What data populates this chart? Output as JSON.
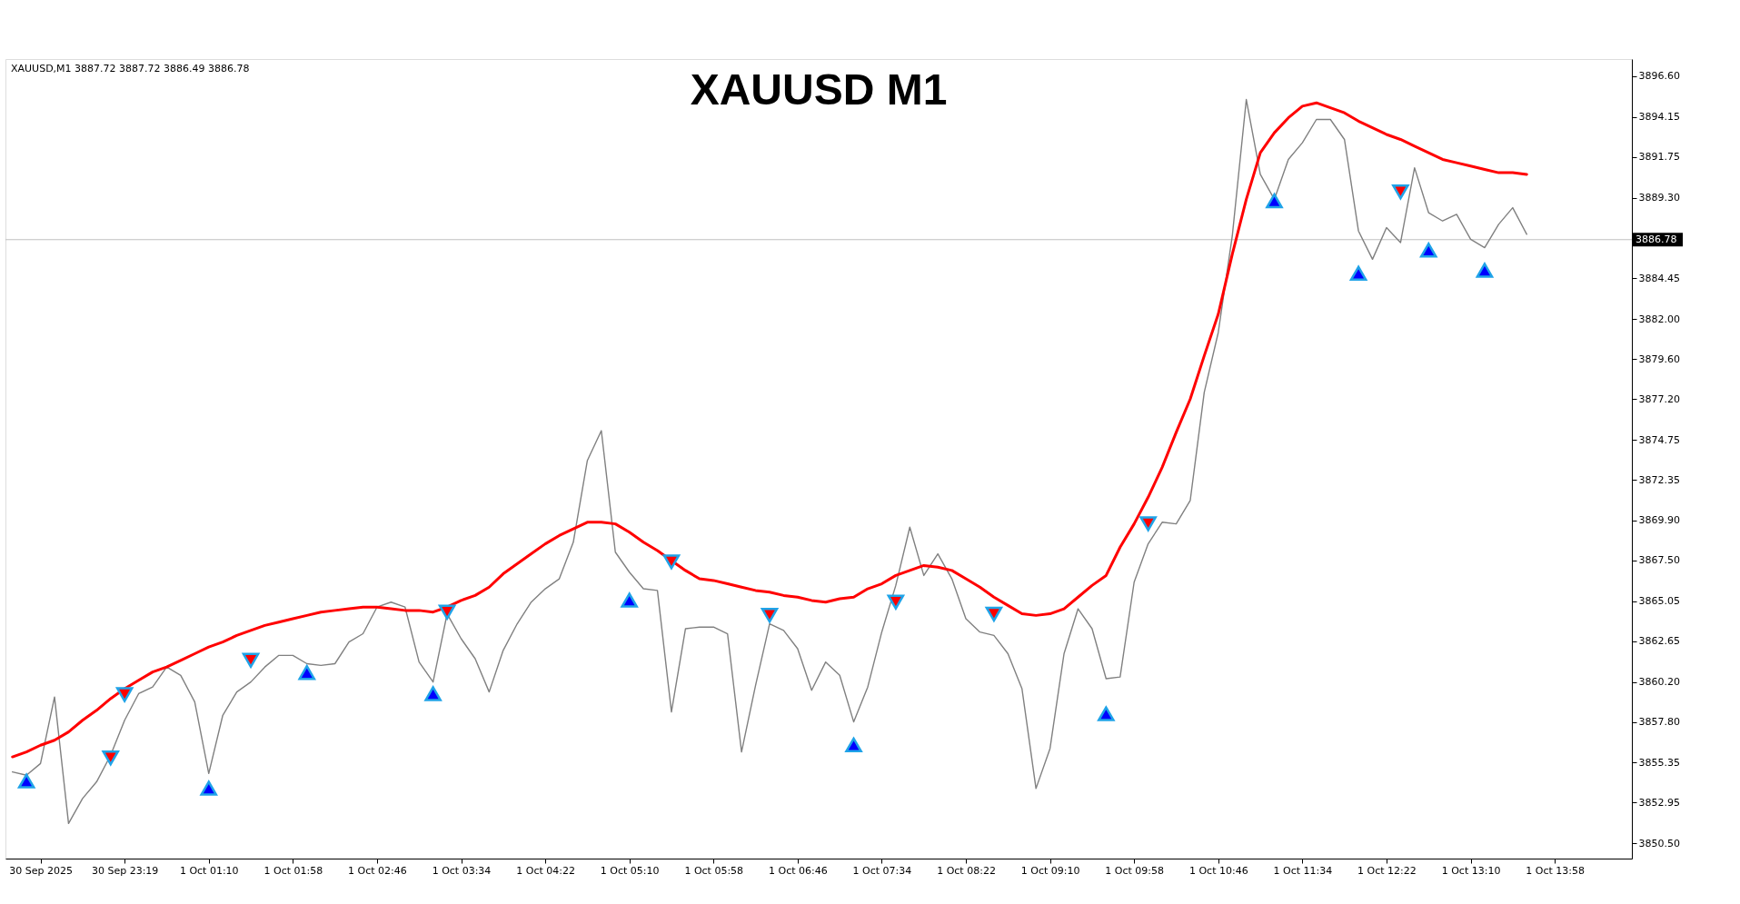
{
  "chart_data": {
    "type": "line",
    "title": "XAUUSD M1",
    "annotations": [
      "XAUUSD,M1  3887.72 3887.72 3886.49 3886.78"
    ],
    "categories": [
      null,
      null,
      "30 Sep 2025",
      null,
      null,
      null,
      null,
      null,
      "30 Sep 23:19",
      null,
      null,
      null,
      null,
      null,
      "1 Oct 01:10",
      null,
      null,
      null,
      null,
      null,
      "1 Oct 01:58",
      null,
      null,
      null,
      null,
      null,
      "1 Oct 02:46",
      null,
      null,
      null,
      null,
      null,
      "1 Oct 03:34",
      null,
      null,
      null,
      null,
      null,
      "1 Oct 04:22",
      null,
      null,
      null,
      null,
      null,
      "1 Oct 05:10",
      null,
      null,
      null,
      null,
      null,
      "1 Oct 05:58",
      null,
      null,
      null,
      null,
      null,
      "1 Oct 06:46",
      null,
      null,
      null,
      null,
      null,
      "1 Oct 07:34",
      null,
      null,
      null,
      null,
      null,
      "1 Oct 08:22",
      null,
      null,
      null,
      null,
      null,
      "1 Oct 09:10",
      null,
      null,
      null,
      null,
      null,
      "1 Oct 09:58",
      null,
      null,
      null,
      null,
      null,
      "1 Oct 10:46",
      null,
      null,
      null,
      null,
      null,
      "1 Oct 11:34",
      null,
      null,
      null,
      null,
      null,
      "1 Oct 12:22",
      null,
      null,
      null,
      null,
      null,
      "1 Oct 13:10",
      null,
      null,
      null,
      null,
      null,
      "1 Oct 13:58",
      null,
      null,
      null,
      null,
      null
    ],
    "ylim": [
      3849.59,
      3897.63
    ],
    "yticks": [
      {
        "value": 3896.6,
        "label": "3896.60"
      },
      {
        "value": 3894.15,
        "label": "3894.15"
      },
      {
        "value": 3891.75,
        "label": "3891.75"
      },
      {
        "value": 3889.3,
        "label": "3889.30"
      },
      {
        "value": 3884.45,
        "label": "3884.45"
      },
      {
        "value": 3882.0,
        "label": "3882.00"
      },
      {
        "value": 3879.6,
        "label": "3879.60"
      },
      {
        "value": 3877.2,
        "label": "3877.20"
      },
      {
        "value": 3874.75,
        "label": "3874.75"
      },
      {
        "value": 3872.35,
        "label": "3872.35"
      },
      {
        "value": 3869.9,
        "label": "3869.90"
      },
      {
        "value": 3867.5,
        "label": "3867.50"
      },
      {
        "value": 3865.05,
        "label": "3865.05"
      },
      {
        "value": 3862.65,
        "label": "3862.65"
      },
      {
        "value": 3860.2,
        "label": "3860.20"
      },
      {
        "value": 3857.8,
        "label": "3857.80"
      },
      {
        "value": 3855.35,
        "label": "3855.35"
      },
      {
        "value": 3852.95,
        "label": "3852.95"
      },
      {
        "value": 3850.5,
        "label": "3850.50"
      }
    ],
    "grid": false,
    "line_style": "solid",
    "ref_lines": [
      {
        "axis": "y",
        "value": 3886.78,
        "label": "3886.78",
        "color": "#c0c0c0"
      }
    ],
    "series": [
      {
        "color": "#808080",
        "values": [
          3854.8,
          3854.6,
          3855.3,
          3859.3,
          3851.7,
          3853.2,
          3854.2,
          3855.8,
          3857.9,
          3859.5,
          3859.9,
          3861.1,
          3860.6,
          3859.0,
          3854.7,
          3858.2,
          3859.6,
          3860.2,
          3861.1,
          3861.8,
          3861.8,
          3861.3,
          3861.2,
          3861.3,
          3862.6,
          3863.1,
          3864.7,
          3865.0,
          3864.7,
          3861.4,
          3860.2,
          3864.3,
          3862.8,
          3861.6,
          3859.6,
          3862.1,
          3863.7,
          3865.0,
          3865.8,
          3866.4,
          3868.6,
          3873.5,
          3875.3,
          3868.0,
          3866.8,
          3865.8,
          3865.7,
          3858.4,
          3863.4,
          3863.5,
          3863.5,
          3863.1,
          3856.0,
          3860.0,
          3863.7,
          3863.3,
          3862.2,
          3859.7,
          3861.4,
          3860.6,
          3857.8,
          3859.9,
          3863.2,
          3866.0,
          3869.5,
          3866.6,
          3867.9,
          3866.4,
          3864.0,
          3863.2,
          3863.0,
          3861.9,
          3859.8,
          3853.8,
          3856.2,
          3861.9,
          3864.6,
          3863.4,
          3860.4,
          3860.5,
          3866.2,
          3868.5,
          3869.8,
          3869.7,
          3871.1,
          3877.6,
          3881.2,
          3887.0,
          3895.2,
          3890.7,
          3889.2,
          3891.6,
          3892.6,
          3894.0,
          3894.0,
          3892.8,
          3887.3,
          3885.6,
          3887.5,
          3886.6,
          3891.1,
          3888.4,
          3887.9,
          3888.3,
          3886.8,
          3886.3,
          3887.7,
          3888.7,
          3887.1,
          null,
          null,
          null,
          null,
          null,
          null,
          null
        ]
      },
      {
        "type": "line",
        "color": "#ff0000",
        "values": [
          3855.7,
          3856.0,
          3856.4,
          3856.7,
          3857.2,
          3857.9,
          3858.5,
          3859.2,
          3859.8,
          3860.3,
          3860.8,
          3861.1,
          3861.5,
          3861.9,
          3862.3,
          3862.6,
          3863.0,
          3863.3,
          3863.6,
          3863.8,
          3864.0,
          3864.2,
          3864.4,
          3864.5,
          3864.6,
          3864.7,
          3864.7,
          3864.6,
          3864.5,
          3864.5,
          3864.4,
          3864.7,
          3865.1,
          3865.4,
          3865.9,
          3866.7,
          3867.3,
          3867.9,
          3868.5,
          3869.0,
          3869.4,
          3869.8,
          3869.8,
          3869.7,
          3869.2,
          3868.6,
          3868.1,
          3867.5,
          3866.9,
          3866.4,
          3866.3,
          3866.1,
          3865.9,
          3865.7,
          3865.6,
          3865.4,
          3865.3,
          3865.1,
          3865.0,
          3865.2,
          3865.3,
          3865.8,
          3866.1,
          3866.6,
          3866.9,
          3867.2,
          3867.1,
          3866.9,
          3866.4,
          3865.9,
          3865.3,
          3864.8,
          3864.3,
          3864.2,
          3864.3,
          3864.6,
          3865.3,
          3866.0,
          3866.6,
          3868.3,
          3869.7,
          3871.3,
          3873.1,
          3875.2,
          3877.2,
          3879.8,
          3882.3,
          3885.9,
          3889.2,
          3892.0,
          3893.2,
          3894.1,
          3894.8,
          3895.0,
          3894.7,
          3894.4,
          3893.9,
          3893.5,
          3893.1,
          3892.8,
          3892.4,
          3892.0,
          3891.6,
          3891.4,
          3891.2,
          3891.0,
          3890.8,
          3890.8,
          3890.7,
          null,
          null,
          null,
          null,
          null,
          null,
          null
        ]
      },
      {
        "type": "scatter",
        "color": "#ff0000",
        "marker": "triangle-down",
        "values": [
          null,
          null,
          null,
          null,
          null,
          null,
          null,
          3855.64,
          3859.44,
          null,
          null,
          null,
          null,
          null,
          null,
          null,
          null,
          3861.5,
          null,
          null,
          null,
          null,
          null,
          null,
          null,
          null,
          null,
          null,
          null,
          null,
          null,
          3864.4,
          null,
          null,
          null,
          null,
          null,
          null,
          null,
          null,
          null,
          null,
          null,
          null,
          null,
          null,
          null,
          3867.42,
          null,
          null,
          null,
          null,
          null,
          null,
          3864.21,
          null,
          null,
          null,
          null,
          null,
          null,
          null,
          null,
          3865.0,
          null,
          null,
          null,
          null,
          null,
          null,
          3864.28,
          null,
          null,
          null,
          null,
          null,
          null,
          null,
          null,
          null,
          null,
          3869.71,
          null,
          null,
          null,
          null,
          null,
          null,
          null,
          null,
          null,
          null,
          null,
          null,
          null,
          null,
          null,
          null,
          null,
          3889.65,
          null,
          null,
          null,
          null,
          null,
          null,
          null,
          null,
          null,
          null,
          null,
          null,
          null,
          null,
          null,
          null
        ]
      },
      {
        "type": "scatter",
        "color": "#0000ff",
        "marker": "triangle",
        "values": [
          null,
          3854.25,
          null,
          null,
          null,
          null,
          null,
          null,
          null,
          null,
          null,
          null,
          null,
          null,
          3853.82,
          null,
          null,
          null,
          null,
          null,
          null,
          3860.77,
          null,
          null,
          null,
          null,
          null,
          null,
          null,
          null,
          3859.5,
          null,
          null,
          null,
          null,
          null,
          null,
          null,
          null,
          null,
          null,
          null,
          null,
          null,
          3865.12,
          null,
          null,
          null,
          null,
          null,
          null,
          null,
          null,
          null,
          null,
          null,
          null,
          null,
          null,
          null,
          3856.42,
          null,
          null,
          null,
          null,
          null,
          null,
          null,
          null,
          null,
          null,
          null,
          null,
          null,
          null,
          null,
          null,
          null,
          3858.29,
          null,
          null,
          null,
          null,
          null,
          null,
          null,
          null,
          null,
          null,
          null,
          3889.11,
          null,
          null,
          null,
          null,
          null,
          3884.76,
          null,
          null,
          null,
          null,
          3886.15,
          null,
          null,
          null,
          3884.94,
          null,
          null,
          null,
          null,
          null,
          null,
          null,
          null,
          null,
          null
        ]
      }
    ]
  }
}
